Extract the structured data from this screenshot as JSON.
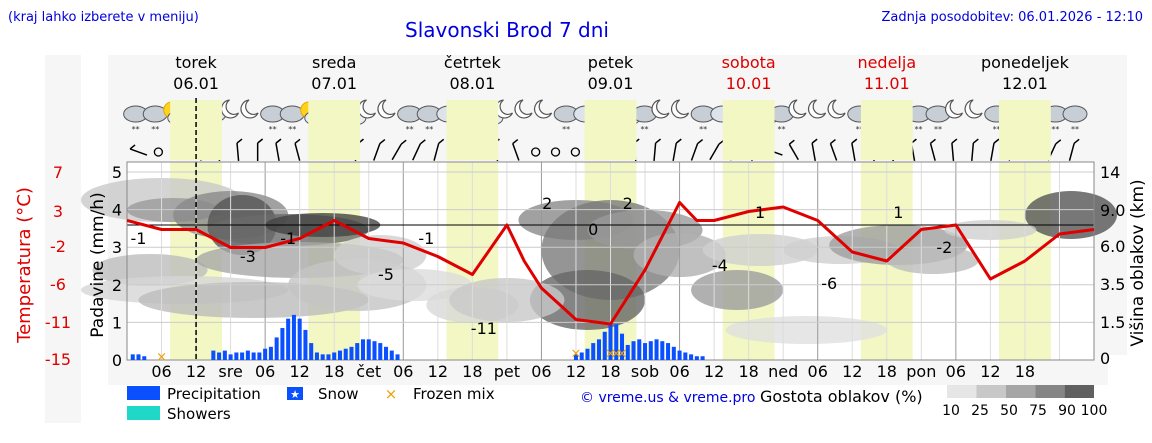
{
  "header": {
    "note": "(kraj lahko izberete v meniju)",
    "title": "Slavonski Brod 7 dni",
    "updated": "Zadnja posodobitev: 06.01.2026 - 12:10"
  },
  "days": [
    {
      "name": "torek",
      "date": "06.01",
      "weekend": false
    },
    {
      "name": "sreda",
      "date": "07.01",
      "weekend": false
    },
    {
      "name": "četrtek",
      "date": "08.01",
      "weekend": false
    },
    {
      "name": "petek",
      "date": "09.01",
      "weekend": false
    },
    {
      "name": "sobota",
      "date": "10.01",
      "weekend": true
    },
    {
      "name": "nedelja",
      "date": "11.01",
      "weekend": true
    },
    {
      "name": "ponedeljek",
      "date": "12.01",
      "weekend": false
    }
  ],
  "axes": {
    "temp_label": "Temperatura (°C)",
    "temp_ticks": [
      "7",
      "3",
      "-2",
      "-6",
      "-11",
      "-15"
    ],
    "precip_label": "Padavine (mm/h)",
    "precip_ticks": [
      "0",
      "1",
      "2",
      "3",
      "4",
      "5"
    ],
    "cloud_label": "Višina oblakov (km)",
    "cloud_ticks": [
      "0",
      "1.5",
      "3.5",
      "6.0",
      "9.0",
      "14"
    ],
    "x_ticks": [
      "06",
      "12",
      "sre",
      "06",
      "12",
      "18",
      "čet",
      "06",
      "12",
      "18",
      "pet",
      "06",
      "12",
      "18",
      "sob",
      "06",
      "12",
      "18",
      "ned",
      "06",
      "12",
      "18",
      "pon",
      "06",
      "12",
      "18"
    ]
  },
  "legend": {
    "precipitation": "Precipitation",
    "snow": "Snow",
    "frozen": "Frozen mix",
    "showers": "Showers",
    "credit": "© vreme.us & vreme.pro",
    "cloud_title": "Gostota oblakov (%)",
    "cloud_scale": [
      "10",
      "25",
      "50",
      "75",
      "90",
      "100"
    ]
  },
  "colors": {
    "temperature": "#e00000",
    "precipitation": "#0a50ff",
    "showers": "#20d8c8",
    "frozen": "#f0a000",
    "weekend": "#dd0000",
    "title": "#0000dd"
  },
  "chart_data": {
    "type": "line",
    "title": "Slavonski Brod 7 dni",
    "x_unit": "hours since 06.01 00:00",
    "x_range": [
      0,
      168
    ],
    "series": [
      {
        "name": "Temperatura (°C)",
        "axis": "left",
        "ylim": [
          -15,
          7
        ],
        "x": [
          0,
          6,
          12,
          15,
          18,
          24,
          30,
          36,
          42,
          48,
          54,
          60,
          66,
          69,
          72,
          78,
          84,
          90,
          96,
          99,
          102,
          108,
          114,
          120,
          126,
          132,
          138,
          144,
          150,
          156,
          162,
          168
        ],
        "values": [
          0.5,
          -0.5,
          -0.5,
          -1.5,
          -2.5,
          -2.5,
          -1.5,
          0.5,
          -1.5,
          -2,
          -3.5,
          -5.5,
          0,
          -4,
          -7,
          -10.5,
          -11,
          -5,
          2.5,
          0.5,
          0.5,
          1.5,
          2,
          0.5,
          -3,
          -4,
          -0.5,
          0,
          -6,
          -4,
          -1,
          -0.5
        ]
      },
      {
        "name": "Padavine (mm/h)",
        "axis": "left-inner",
        "ylim": [
          0,
          5
        ],
        "x": [
          1,
          2,
          3,
          15,
          16,
          17,
          18,
          19,
          20,
          21,
          22,
          23,
          24,
          25,
          26,
          27,
          28,
          29,
          30,
          31,
          32,
          33,
          34,
          35,
          36,
          37,
          38,
          39,
          40,
          41,
          42,
          43,
          44,
          45,
          46,
          47,
          78,
          79,
          80,
          81,
          82,
          83,
          84,
          85,
          86,
          87,
          88,
          89,
          90,
          91,
          92,
          93,
          94,
          95,
          96,
          97,
          98,
          99,
          100
        ],
        "values": [
          0.15,
          0.15,
          0.1,
          0.25,
          0.2,
          0.25,
          0.15,
          0.2,
          0.2,
          0.25,
          0.2,
          0.2,
          0.3,
          0.35,
          0.6,
          0.85,
          1.1,
          1.2,
          1.1,
          0.8,
          0.45,
          0.2,
          0.15,
          0.15,
          0.2,
          0.25,
          0.3,
          0.35,
          0.45,
          0.55,
          0.55,
          0.5,
          0.45,
          0.35,
          0.25,
          0.15,
          0.15,
          0.2,
          0.3,
          0.45,
          0.55,
          0.75,
          1.0,
          0.95,
          0.7,
          0.4,
          0.5,
          0.55,
          0.45,
          0.5,
          0.55,
          0.5,
          0.45,
          0.35,
          0.25,
          0.2,
          0.15,
          0.1,
          0.1
        ]
      },
      {
        "name": "Frozen mix (mm/h)",
        "axis": "left-inner",
        "ylim": [
          0,
          5
        ],
        "x": [
          6,
          78,
          84,
          85,
          86
        ],
        "values": [
          0.1,
          0.2,
          0.2,
          0.2,
          0.2
        ]
      }
    ],
    "temperature_labels": [
      {
        "x": 2,
        "value": -1
      },
      {
        "x": 21,
        "value": -3
      },
      {
        "x": 28,
        "value": -1
      },
      {
        "x": 45,
        "value": -5
      },
      {
        "x": 52,
        "value": -1
      },
      {
        "x": 62,
        "value": -11
      },
      {
        "x": 73,
        "value": 2
      },
      {
        "x": 81,
        "value": 0
      },
      {
        "x": 87,
        "value": 2
      },
      {
        "x": 103,
        "value": -4
      },
      {
        "x": 110,
        "value": 1
      },
      {
        "x": 122,
        "value": -6
      },
      {
        "x": 134,
        "value": 1
      },
      {
        "x": 142,
        "value": -2
      }
    ],
    "cloud_axis": {
      "label": "Višina oblakov (km)",
      "ylim": [
        0,
        14
      ]
    },
    "xlabel": "",
    "ylabel": "Padavine (mm/h)"
  }
}
